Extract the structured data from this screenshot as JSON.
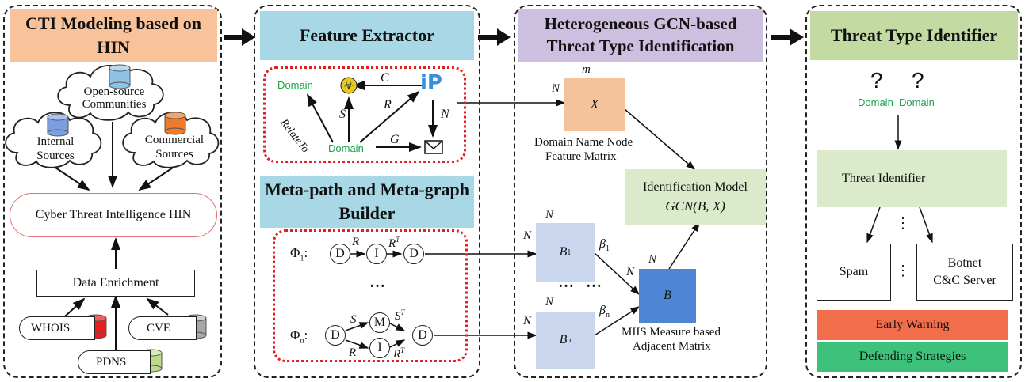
{
  "panel1": {
    "header": "CTI Modeling based on HIN",
    "cloud_open": "Open-source Communities",
    "cloud_internal": "Internal Sources",
    "cloud_commercial": "Commercial Sources",
    "hin_box": "Cyber Threat Intelligence HIN",
    "enrich_box": "Data Enrichment",
    "whois": "WHOIS",
    "cve": "CVE",
    "pdns": "PDNS"
  },
  "panel2": {
    "header_feature": "Feature Extractor",
    "header_meta": "Meta-path and Meta-graph Builder",
    "domain1": "Domain",
    "domain2": "Domain",
    "ip": "iP",
    "lbl_c": "C",
    "lbl_s": "S",
    "lbl_r": "R",
    "lbl_n": "N",
    "lbl_g": "G",
    "lbl_relate": "RelateTo",
    "phi1": "Φ1:",
    "phin": "Φn:",
    "node_d": "D",
    "node_i": "I",
    "node_m": "M",
    "edge_r": "R",
    "edge_rt": "R",
    "edge_s": "S",
    "edge_st": "S",
    "sup_t": "T",
    "ellipsis": "…"
  },
  "panel3": {
    "header": "Heterogeneous GCN-based Threat Type Identification",
    "m": "m",
    "n": "N",
    "x": "X",
    "x_caption1": "Domain Name Node",
    "x_caption2": "Feature Matrix",
    "model1": "Identification Model",
    "model2": "GCN(B, X)",
    "b1": "B",
    "b1_sub": "1",
    "bn": "B",
    "bn_sub": "n",
    "b": "B",
    "beta1": "β",
    "beta1_sub": "1",
    "betan": "β",
    "betan_sub": "n",
    "dots": "…   …",
    "b_caption1": "MIIS Measure based",
    "b_caption2": "Adjacent Matrix"
  },
  "panel4": {
    "header": "Threat Type Identifier",
    "q": "?",
    "domain_a": "Domain",
    "domain_b": "Domain",
    "identifier": "Threat Identifier",
    "spam": "Spam",
    "botnet1": "Botnet",
    "botnet2": "C&C Server",
    "vdots": "⋮",
    "early": "Early Warning",
    "defend": "Defending Strategies"
  },
  "colors": {
    "header_orange": "#f8c29a",
    "header_blue": "#a8d8e6",
    "header_purple": "#cdbfe0",
    "header_green": "#c3dba2",
    "matrix_x": "#f5c39b",
    "matrix_b_light": "#c9d6ee",
    "matrix_b": "#4f86d4",
    "model_box": "#dbeacb",
    "early": "#f26d4a",
    "defend": "#3ec27b",
    "dot_red": "#e02020",
    "domain_green": "#1aa34a"
  }
}
